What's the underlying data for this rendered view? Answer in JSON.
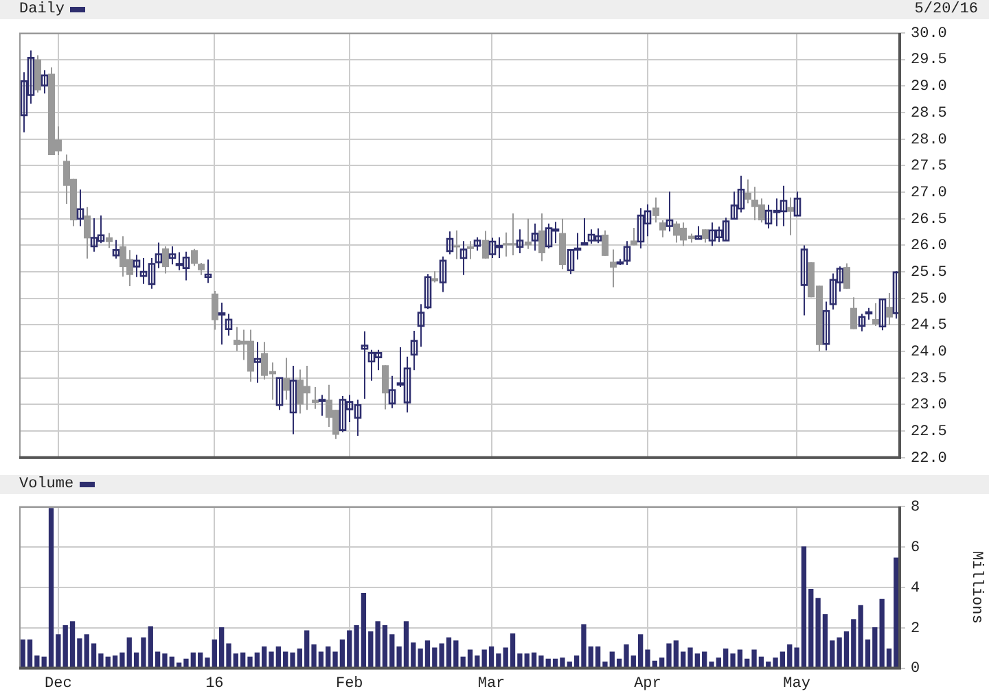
{
  "chart_data": [
    {
      "type": "candlestick",
      "legend": "top left",
      "tick_labels": "y",
      "grid": true,
      "annotations": [
        "5/20/16"
      ],
      "ylim": [
        22,
        30
      ],
      "yticks": [
        {
          "value": 22,
          "label": "22.0"
        },
        {
          "value": 22.5,
          "label": "22.5"
        },
        {
          "value": 23,
          "label": "23.0"
        },
        {
          "value": 23.5,
          "label": "23.5"
        },
        {
          "value": 24,
          "label": "24.0"
        },
        {
          "value": 24.5,
          "label": "24.5"
        },
        {
          "value": 25,
          "label": "25.0"
        },
        {
          "value": 25.5,
          "label": "25.5"
        },
        {
          "value": 26,
          "label": "26.0"
        },
        {
          "value": 26.5,
          "label": "26.5"
        },
        {
          "value": 27,
          "label": "27.0"
        },
        {
          "value": 27.5,
          "label": "27.5"
        },
        {
          "value": 28,
          "label": "28.0"
        },
        {
          "value": 28.5,
          "label": "28.5"
        },
        {
          "value": 29,
          "label": "29.0"
        },
        {
          "value": 29.5,
          "label": "29.5"
        },
        {
          "value": 30,
          "label": "30.0"
        }
      ],
      "series": [
        {
          "name": "Daily",
          "color": "#2e2e6e",
          "colors": [
            "#2e2e6e",
            "#2e2e6e",
            "#999999",
            "#2e2e6e",
            "#999999",
            "#999999",
            "#999999",
            "#999999",
            "#2e2e6e",
            "#999999",
            "#2e2e6e",
            "#2e2e6e",
            "#999999",
            "#2e2e6e",
            "#999999",
            "#999999",
            "#2e2e6e",
            "#2e2e6e",
            "#2e2e6e",
            "#2e2e6e",
            "#999999",
            "#2e2e6e",
            "#2e2e6e",
            "#2e2e6e",
            "#999999",
            "#999999",
            "#2e2e6e",
            "#999999",
            "#2e2e6e",
            "#2e2e6e",
            "#999999",
            "#999999",
            "#999999",
            "#2e2e6e",
            "#999999",
            "#999999",
            "#2e2e6e",
            "#999999",
            "#2e2e6e",
            "#999999",
            "#999999",
            "#999999",
            "#2e2e6e",
            "#999999",
            "#999999",
            "#2e2e6e",
            "#2e2e6e",
            "#2e2e6e",
            "#2e2e6e",
            "#2e2e6e",
            "#2e2e6e",
            "#999999",
            "#2e2e6e",
            "#2e2e6e",
            "#2e2e6e",
            "#2e2e6e",
            "#2e2e6e",
            "#2e2e6e",
            "#999999",
            "#2e2e6e",
            "#2e2e6e",
            "#999999",
            "#2e2e6e",
            "#999999",
            "#2e2e6e",
            "#999999",
            "#2e2e6e",
            "#2e2e6e",
            "#999999",
            "#999999",
            "#2e2e6e",
            "#999999",
            "#2e2e6e",
            "#999999",
            "#2e2e6e",
            "#2e2e6e",
            "#999999",
            "#2e2e6e",
            "#2e2e6e",
            "#2e2e6e",
            "#2e2e6e",
            "#2e2e6e",
            "#999999",
            "#999999",
            "#2e2e6e",
            "#2e2e6e",
            "#999999",
            "#2e2e6e",
            "#2e2e6e",
            "#999999",
            "#999999",
            "#2e2e6e",
            "#999999",
            "#999999",
            "#999999",
            "#2e2e6e",
            "#999999",
            "#2e2e6e",
            "#2e2e6e",
            "#2e2e6e",
            "#2e2e6e",
            "#2e2e6e",
            "#999999",
            "#999999",
            "#999999",
            "#2e2e6e",
            "#2e2e6e",
            "#2e2e6e",
            "#999999",
            "#2e2e6e",
            "#2e2e6e",
            "#999999",
            "#999999",
            "#2e2e6e",
            "#2e2e6e",
            "#2e2e6e",
            "#999999",
            "#999999",
            "#2e2e6e",
            "#2e2e6e",
            "#999999",
            "#2e2e6e",
            "#999999",
            "#2e2e6e"
          ],
          "ohlc": [
            [
              28.45,
              29.26,
              28.13,
              29.09
            ],
            [
              28.83,
              29.67,
              28.67,
              29.53
            ],
            [
              29.5,
              29.58,
              28.88,
              28.92
            ],
            [
              29.01,
              29.3,
              28.86,
              29.2
            ],
            [
              29.23,
              29.35,
              27.7,
              27.7
            ],
            [
              27.99,
              28.24,
              27.7,
              27.77
            ],
            [
              27.59,
              27.71,
              26.78,
              27.12
            ],
            [
              27.25,
              27.25,
              26.36,
              26.47
            ],
            [
              26.5,
              27.05,
              26.36,
              26.68
            ],
            [
              26.56,
              26.72,
              25.75,
              26.13
            ],
            [
              25.98,
              26.51,
              25.88,
              26.14
            ],
            [
              26.08,
              26.56,
              26.04,
              26.19
            ],
            [
              26.15,
              26.23,
              25.95,
              26.06
            ],
            [
              25.81,
              26.1,
              25.75,
              25.91
            ],
            [
              25.98,
              26.17,
              25.41,
              25.59
            ],
            [
              25.74,
              25.91,
              25.23,
              25.44
            ],
            [
              25.6,
              25.82,
              25.4,
              25.71
            ],
            [
              25.42,
              25.76,
              25.27,
              25.5
            ],
            [
              25.27,
              25.76,
              25.18,
              25.65
            ],
            [
              25.68,
              26.05,
              25.57,
              25.83
            ],
            [
              25.94,
              25.98,
              25.47,
              25.59
            ],
            [
              25.76,
              25.98,
              25.64,
              25.83
            ],
            [
              25.64,
              25.87,
              25.53,
              25.65
            ],
            [
              25.57,
              25.88,
              25.34,
              25.77
            ],
            [
              25.91,
              25.93,
              25.61,
              25.65
            ],
            [
              25.65,
              25.67,
              25.44,
              25.53
            ],
            [
              25.4,
              25.73,
              25.29,
              25.45
            ],
            [
              25.09,
              25.14,
              24.41,
              24.59
            ],
            [
              24.7,
              24.92,
              24.13,
              24.72
            ],
            [
              24.42,
              24.71,
              24.3,
              24.6
            ],
            [
              24.22,
              24.46,
              24.01,
              24.12
            ],
            [
              24.2,
              24.41,
              23.84,
              24.13
            ],
            [
              24.2,
              24.41,
              23.43,
              23.62
            ],
            [
              23.8,
              24.18,
              23.41,
              23.86
            ],
            [
              23.97,
              24.18,
              23.47,
              23.54
            ],
            [
              23.63,
              23.79,
              23.09,
              23.57
            ],
            [
              22.99,
              23.5,
              22.9,
              23.5
            ],
            [
              23.5,
              23.88,
              23.09,
              23.26
            ],
            [
              22.85,
              23.73,
              22.44,
              23.45
            ],
            [
              23.47,
              23.66,
              22.83,
              23.0
            ],
            [
              23.35,
              23.73,
              22.9,
              23.21
            ],
            [
              23.09,
              23.33,
              22.92,
              23.03
            ],
            [
              23.08,
              23.18,
              22.79,
              23.09
            ],
            [
              23.09,
              23.37,
              22.58,
              22.75
            ],
            [
              22.9,
              22.9,
              22.35,
              22.43
            ],
            [
              22.52,
              23.16,
              22.48,
              23.09
            ],
            [
              22.91,
              23.18,
              22.67,
              23.05
            ],
            [
              22.75,
              23.09,
              22.41,
              22.99
            ],
            [
              24.05,
              24.38,
              23.11,
              24.11
            ],
            [
              23.81,
              24.03,
              23.45,
              23.97
            ],
            [
              23.89,
              24.03,
              23.65,
              23.97
            ],
            [
              23.74,
              23.74,
              22.91,
              23.21
            ],
            [
              23.02,
              23.54,
              22.93,
              23.27
            ],
            [
              23.39,
              24.08,
              23.33,
              23.4
            ],
            [
              23.04,
              23.9,
              22.85,
              23.68
            ],
            [
              23.94,
              24.39,
              23.65,
              24.2
            ],
            [
              24.48,
              24.89,
              24.09,
              24.73
            ],
            [
              24.83,
              25.46,
              24.8,
              25.4
            ],
            [
              25.38,
              25.51,
              25.3,
              25.32
            ],
            [
              25.3,
              25.79,
              25.12,
              25.71
            ],
            [
              25.89,
              26.26,
              25.83,
              26.12
            ],
            [
              26.0,
              26.28,
              25.74,
              25.96
            ],
            [
              25.76,
              26.08,
              25.44,
              25.92
            ],
            [
              25.98,
              26.08,
              25.74,
              25.93
            ],
            [
              25.99,
              26.15,
              25.9,
              26.09
            ],
            [
              26.1,
              26.27,
              25.75,
              25.75
            ],
            [
              25.83,
              26.14,
              25.76,
              26.07
            ],
            [
              25.98,
              26.15,
              25.76,
              25.99
            ],
            [
              26.04,
              26.24,
              25.79,
              26.0
            ],
            [
              26.04,
              26.6,
              25.81,
              26.0
            ],
            [
              25.97,
              26.3,
              25.85,
              26.09
            ],
            [
              26.07,
              26.5,
              25.93,
              26.0
            ],
            [
              26.09,
              26.41,
              25.9,
              26.22
            ],
            [
              26.28,
              26.6,
              25.7,
              25.85
            ],
            [
              25.98,
              26.41,
              25.94,
              26.32
            ],
            [
              26.29,
              26.44,
              26.04,
              26.3
            ],
            [
              26.23,
              26.5,
              25.55,
              25.63
            ],
            [
              25.53,
              25.91,
              25.46,
              25.91
            ],
            [
              25.93,
              26.23,
              25.73,
              25.94
            ],
            [
              26.03,
              26.51,
              26.02,
              26.04
            ],
            [
              26.09,
              26.3,
              26.03,
              26.2
            ],
            [
              26.09,
              26.32,
              26.04,
              26.17
            ],
            [
              26.2,
              26.28,
              25.8,
              25.8
            ],
            [
              25.69,
              25.92,
              25.21,
              25.58
            ],
            [
              25.67,
              25.74,
              25.63,
              25.68
            ],
            [
              25.71,
              26.08,
              25.63,
              25.97
            ],
            [
              26.09,
              26.33,
              26.0,
              26.0
            ],
            [
              26.07,
              26.7,
              25.94,
              26.56
            ],
            [
              26.41,
              26.77,
              26.17,
              26.64
            ],
            [
              26.71,
              26.9,
              26.43,
              26.55
            ],
            [
              26.43,
              26.47,
              26.15,
              26.28
            ],
            [
              26.36,
              27.01,
              26.26,
              26.47
            ],
            [
              26.41,
              26.45,
              26.05,
              26.18
            ],
            [
              26.33,
              26.43,
              25.99,
              26.09
            ],
            [
              26.18,
              26.22,
              26.05,
              26.12
            ],
            [
              26.12,
              26.36,
              26.12,
              26.17
            ],
            [
              26.3,
              26.3,
              26.05,
              26.12
            ],
            [
              26.09,
              26.43,
              25.99,
              26.28
            ],
            [
              26.15,
              26.35,
              26.06,
              26.28
            ],
            [
              26.09,
              26.52,
              26.09,
              26.45
            ],
            [
              26.5,
              27.01,
              26.5,
              26.75
            ],
            [
              26.69,
              27.31,
              26.62,
              27.05
            ],
            [
              26.99,
              27.24,
              26.79,
              26.86
            ],
            [
              26.86,
              27.1,
              26.47,
              26.72
            ],
            [
              26.77,
              26.88,
              26.43,
              26.47
            ],
            [
              26.41,
              26.76,
              26.32,
              26.65
            ],
            [
              26.64,
              26.88,
              26.36,
              26.65
            ],
            [
              26.64,
              27.12,
              26.36,
              26.84
            ],
            [
              26.72,
              26.9,
              26.19,
              26.63
            ],
            [
              26.56,
              27.01,
              26.56,
              26.88
            ],
            [
              25.25,
              26.0,
              24.68,
              25.92
            ],
            [
              25.68,
              25.68,
              25.02,
              25.02
            ],
            [
              25.24,
              25.24,
              24.0,
              24.12
            ],
            [
              24.14,
              24.94,
              24.02,
              24.76
            ],
            [
              24.89,
              25.47,
              24.79,
              25.35
            ],
            [
              25.3,
              25.6,
              25.13,
              25.56
            ],
            [
              25.59,
              25.66,
              25.18,
              25.18
            ],
            [
              24.82,
              25.02,
              24.42,
              24.42
            ],
            [
              24.48,
              24.71,
              24.38,
              24.65
            ],
            [
              24.73,
              24.82,
              24.6,
              24.74
            ],
            [
              24.61,
              24.91,
              24.48,
              24.51
            ],
            [
              24.47,
              24.98,
              24.4,
              24.98
            ],
            [
              24.84,
              25.1,
              24.5,
              24.64
            ],
            [
              24.72,
              25.51,
              24.62,
              25.49
            ]
          ]
        }
      ]
    },
    {
      "type": "bar",
      "legend": "top left",
      "grid": true,
      "ylabel": "Millions",
      "categories": [
        null,
        null,
        null,
        null,
        null,
        "Dec",
        null,
        null,
        null,
        null,
        null,
        null,
        null,
        null,
        null,
        null,
        null,
        null,
        null,
        null,
        null,
        null,
        null,
        null,
        null,
        null,
        null,
        "16",
        null,
        null,
        null,
        null,
        null,
        null,
        null,
        null,
        null,
        null,
        null,
        null,
        null,
        null,
        null,
        null,
        null,
        null,
        "Feb",
        null,
        null,
        null,
        null,
        null,
        null,
        null,
        null,
        null,
        null,
        null,
        null,
        null,
        null,
        null,
        null,
        null,
        null,
        null,
        "Mar",
        null,
        null,
        null,
        null,
        null,
        null,
        null,
        null,
        null,
        null,
        null,
        null,
        null,
        null,
        null,
        null,
        null,
        null,
        null,
        null,
        null,
        "Apr",
        null,
        null,
        null,
        null,
        null,
        null,
        null,
        null,
        null,
        null,
        null,
        null,
        null,
        null,
        null,
        null,
        null,
        null,
        null,
        null,
        "May",
        null,
        null,
        null,
        null,
        null,
        null,
        null,
        null,
        null,
        null,
        null,
        null,
        null,
        null
      ],
      "ylim": [
        0,
        8
      ],
      "yticks": [
        0,
        2,
        4,
        6,
        8
      ],
      "series": [
        {
          "name": "Volume",
          "color": "#2e2e6e",
          "values": [
            1.4,
            1.4,
            0.6,
            0.55,
            7.9,
            1.65,
            2.1,
            2.3,
            1.45,
            1.65,
            1.2,
            0.7,
            0.55,
            0.6,
            0.75,
            1.5,
            0.75,
            1.5,
            2.05,
            0.8,
            0.7,
            0.55,
            0.25,
            0.45,
            0.75,
            0.75,
            0.5,
            1.4,
            2.0,
            1.2,
            0.7,
            0.75,
            0.55,
            0.75,
            1.05,
            0.8,
            1.05,
            0.8,
            0.75,
            0.95,
            1.85,
            1.15,
            0.8,
            1.05,
            0.8,
            1.4,
            1.85,
            2.1,
            3.7,
            1.8,
            2.3,
            2.1,
            1.65,
            1.05,
            2.3,
            1.25,
            0.95,
            1.35,
            1.0,
            1.2,
            1.5,
            1.35,
            0.55,
            0.9,
            0.6,
            0.9,
            1.05,
            0.7,
            1.0,
            1.7,
            0.7,
            0.7,
            0.75,
            0.6,
            0.45,
            0.45,
            0.5,
            0.3,
            0.6,
            2.15,
            1.05,
            1.05,
            0.3,
            0.8,
            0.45,
            1.15,
            0.6,
            1.65,
            0.9,
            0.35,
            0.5,
            1.2,
            1.35,
            0.8,
            1.0,
            0.7,
            0.8,
            0.3,
            0.5,
            0.95,
            0.7,
            0.9,
            0.45,
            0.9,
            0.55,
            0.3,
            0.5,
            0.8,
            1.15,
            1.0,
            6.0,
            3.9,
            3.45,
            2.65,
            1.35,
            1.5,
            1.8,
            2.4,
            3.1,
            1.4,
            2.0,
            3.4,
            0.95,
            5.45
          ]
        }
      ]
    }
  ]
}
